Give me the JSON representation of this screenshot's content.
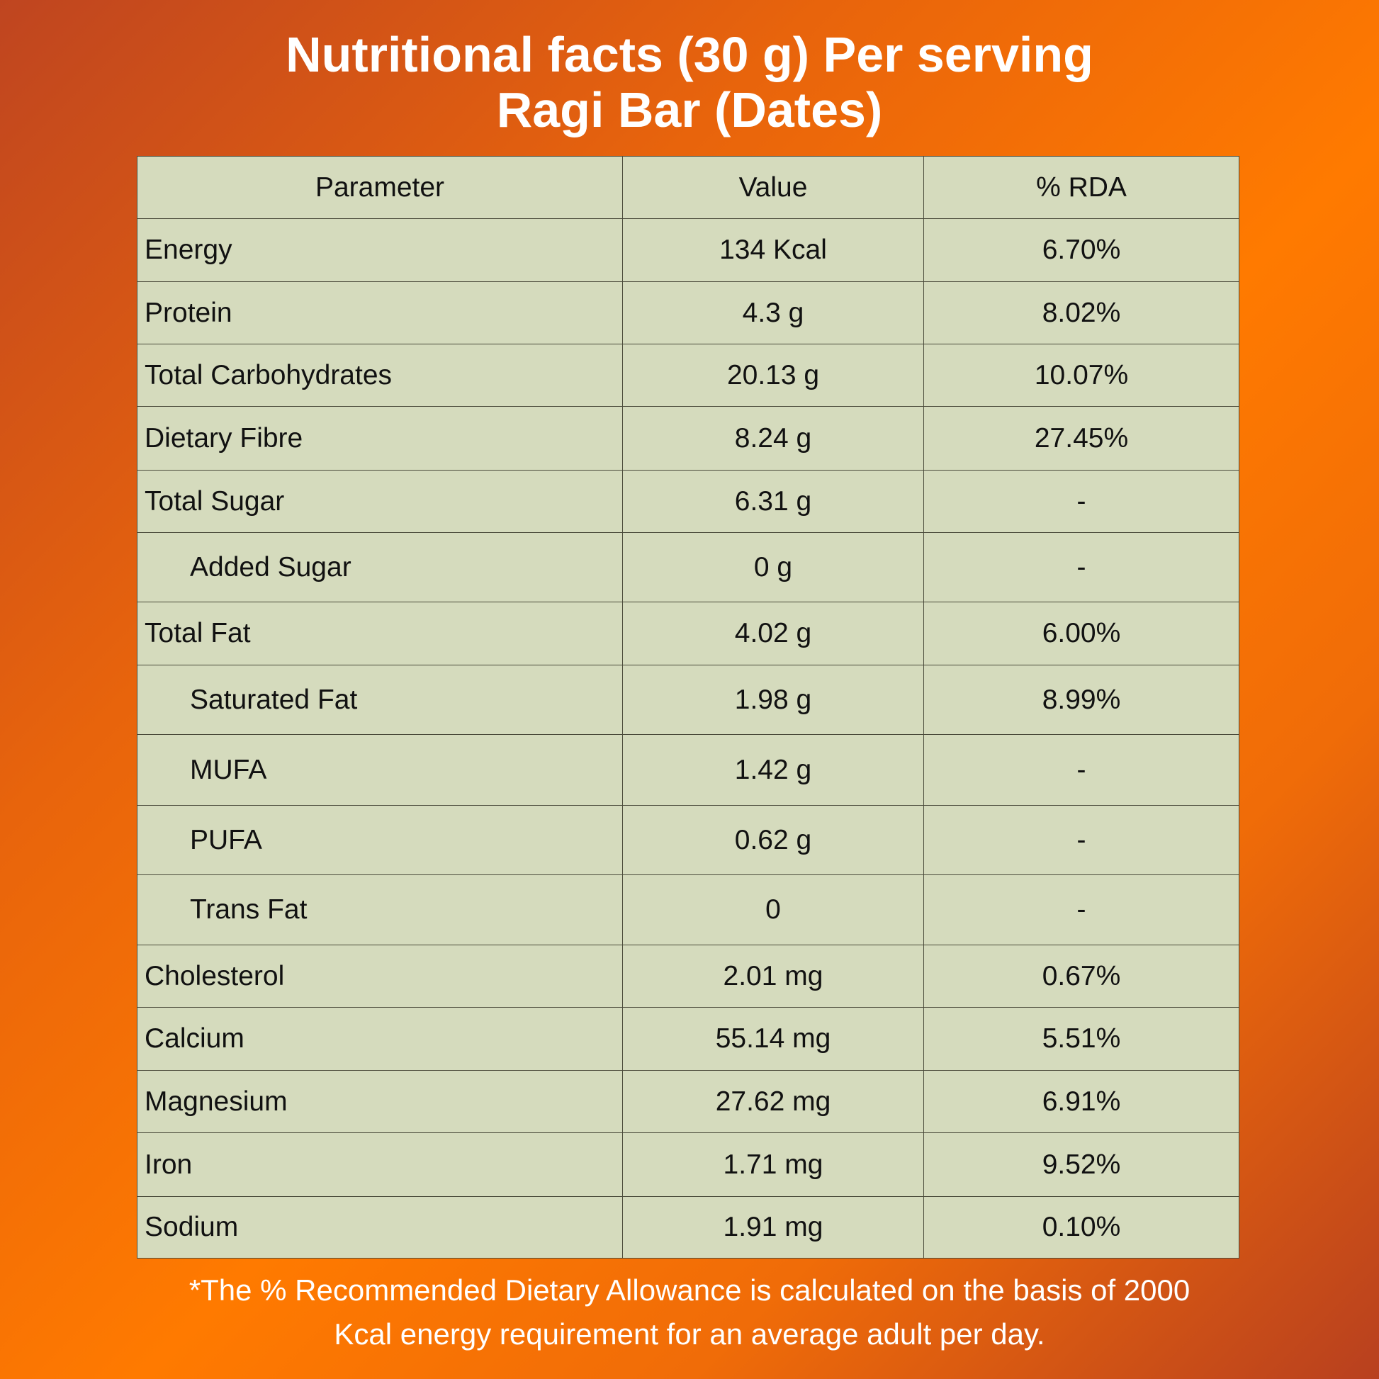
{
  "title": {
    "line1": "Nutritional facts (30 g) Per serving",
    "line2": "Ragi Bar (Dates)"
  },
  "table": {
    "headers": [
      "Parameter",
      "Value",
      "% RDA"
    ],
    "rows": [
      {
        "parameter": "Energy",
        "value": "134 Kcal",
        "rda": "6.70%",
        "indent": false
      },
      {
        "parameter": "Protein",
        "value": "4.3 g",
        "rda": "8.02%",
        "indent": false
      },
      {
        "parameter": "Total Carbohydrates",
        "value": "20.13 g",
        "rda": "10.07%",
        "indent": false
      },
      {
        "parameter": "Dietary Fibre",
        "value": "8.24 g",
        "rda": "27.45%",
        "indent": false
      },
      {
        "parameter": "Total Sugar",
        "value": "6.31 g",
        "rda": "-",
        "indent": false
      },
      {
        "parameter": "Added Sugar",
        "value": "0 g",
        "rda": "-",
        "indent": true
      },
      {
        "parameter": "Total Fat",
        "value": "4.02 g",
        "rda": "6.00%",
        "indent": false
      },
      {
        "parameter": "Saturated Fat",
        "value": "1.98 g",
        "rda": "8.99%",
        "indent": true
      },
      {
        "parameter": "MUFA",
        "value": "1.42 g",
        "rda": "-",
        "indent": true
      },
      {
        "parameter": "PUFA",
        "value": "0.62 g",
        "rda": "-",
        "indent": true
      },
      {
        "parameter": "Trans Fat",
        "value": "0",
        "rda": "-",
        "indent": true
      },
      {
        "parameter": "Cholesterol",
        "value": "2.01 mg",
        "rda": "0.67%",
        "indent": false
      },
      {
        "parameter": "Calcium",
        "value": "55.14 mg",
        "rda": "5.51%",
        "indent": false
      },
      {
        "parameter": "Magnesium",
        "value": "27.62 mg",
        "rda": "6.91%",
        "indent": false
      },
      {
        "parameter": "Iron",
        "value": "1.71 mg",
        "rda": "9.52%",
        "indent": false
      },
      {
        "parameter": "Sodium",
        "value": "1.91 mg",
        "rda": "0.10%",
        "indent": false
      }
    ]
  },
  "footnote": {
    "line1": "*The % Recommended Dietary Allowance is calculated on the basis of 2000",
    "line2": "Kcal energy requirement for an average adult per day."
  },
  "colors": {
    "table_bg": "#d5dbbd",
    "text": "#ffffff"
  }
}
